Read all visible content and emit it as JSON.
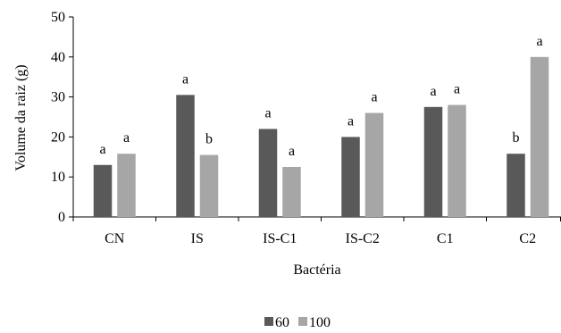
{
  "chart_data": {
    "type": "bar",
    "title": "",
    "xlabel": "Bactéria",
    "ylabel": "Volume da raiz (g)",
    "ylim": [
      0,
      50
    ],
    "yticks": [
      "0",
      "10",
      "20",
      "30",
      "40",
      "50"
    ],
    "grid": false,
    "legend_position": "bottom",
    "categories": [
      "CN",
      "IS",
      "IS-C1",
      "IS-C2",
      "C1",
      "C2"
    ],
    "series": [
      {
        "name": "60",
        "color": "#595959",
        "values": [
          13,
          30.5,
          22,
          20,
          27.5,
          15.8
        ],
        "labels": [
          "a",
          "a",
          "a",
          "a",
          "a",
          "b"
        ]
      },
      {
        "name": "100",
        "color": "#a6a6a6",
        "values": [
          15.8,
          15.5,
          12.5,
          26,
          28,
          40
        ],
        "labels": [
          "a",
          "b",
          "a",
          "a",
          "a",
          "a"
        ]
      }
    ]
  }
}
